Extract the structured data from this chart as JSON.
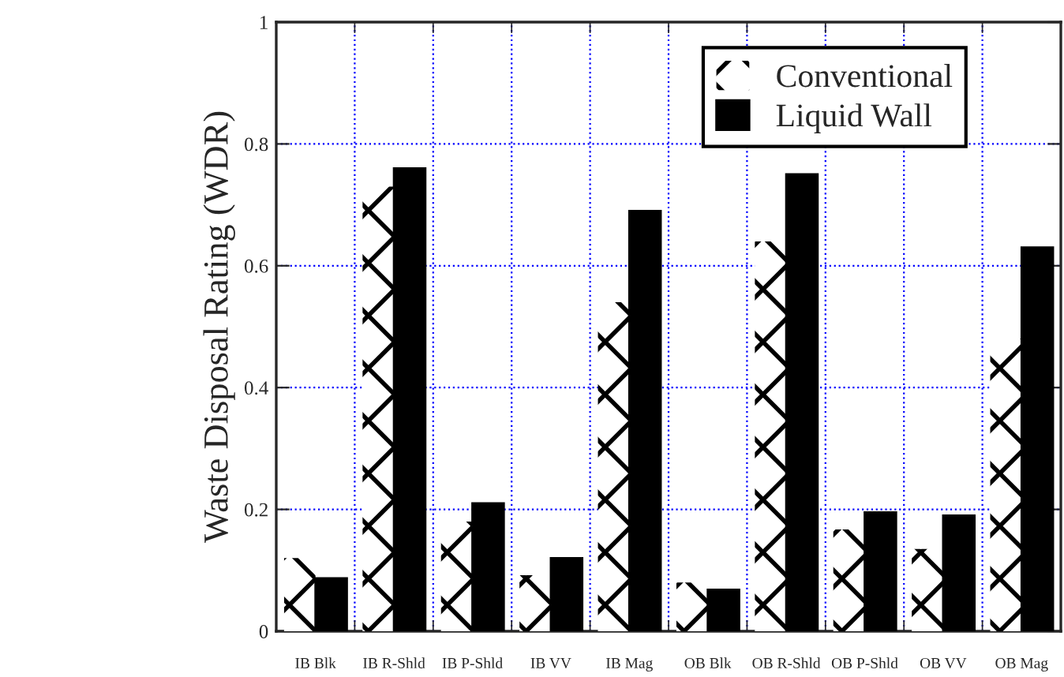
{
  "chart_data": {
    "type": "bar",
    "ylabel": "Waste Disposal Rating (WDR)",
    "categories": [
      "IB Blk",
      "IB R-Shld",
      "IB P-Shld",
      "IB VV",
      "IB Mag",
      "OB Blk",
      "OB R-Shld",
      "OB P-Shld",
      "OB VV",
      "OB Mag"
    ],
    "series": [
      {
        "name": "Conventional",
        "color": "#ffffff",
        "values": [
          0.12,
          0.73,
          0.18,
          0.092,
          0.54,
          0.08,
          0.64,
          0.167,
          0.135,
          0.48
        ]
      },
      {
        "name": "Liquid Wall",
        "color": "#000000",
        "values": [
          0.087,
          0.76,
          0.21,
          0.12,
          0.69,
          0.068,
          0.75,
          0.195,
          0.19,
          0.63
        ]
      }
    ],
    "ylim": [
      0,
      1
    ],
    "yticks": [
      0,
      0.2,
      0.4,
      0.6,
      0.8,
      1
    ],
    "grid": true,
    "legend": "top right"
  }
}
